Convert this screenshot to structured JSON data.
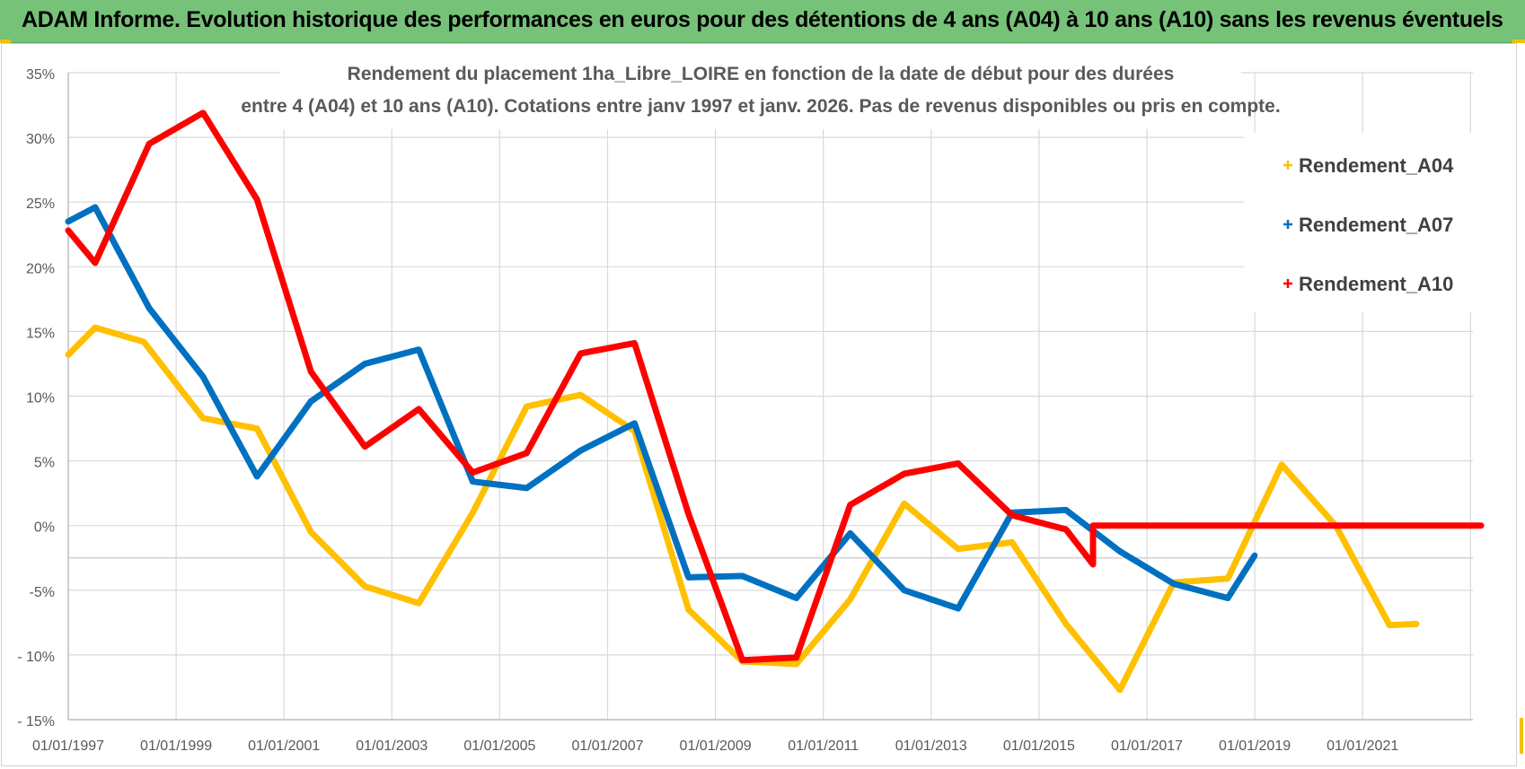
{
  "header": {
    "title": "ADAM Informe. Evolution historique des performances en euros pour des détentions de 4 ans (A04) à 10 ans (A10) sans les revenus éventuels"
  },
  "colors": {
    "banner": "#76c278",
    "a04": "#ffc000",
    "a07": "#0070c0",
    "a10": "#ff0000",
    "grid": "#d9d9d9"
  },
  "chart_data": {
    "type": "line",
    "title_line1": "Rendement du placement 1ha_Libre_LOIRE en fonction de la date de début pour des durées",
    "title_line2": "entre 4 (A04) et 10 ans (A10).  Cotations entre janv 1997 et janv. 2026. Pas de revenus disponibles ou pris en compte.",
    "xlabel": "",
    "ylabel": "",
    "x_ticks": [
      "01/01/1997",
      "01/01/1999",
      "01/01/2001",
      "01/01/2003",
      "01/01/2005",
      "01/01/2007",
      "01/01/2009",
      "01/01/2011",
      "01/01/2013",
      "01/01/2015",
      "01/01/2017",
      "01/01/2019",
      "01/01/2021"
    ],
    "y_ticks": [
      "35%",
      "30%",
      "25%",
      "20%",
      "15%",
      "10%",
      "5%",
      "0%",
      "-5%",
      "- 10%",
      "- 15%"
    ],
    "xlim": [
      1997.0,
      2023.2
    ],
    "ylim": [
      -15,
      35
    ],
    "grid": true,
    "legend_position": "top-right",
    "series": [
      {
        "name": "Rendement_A04",
        "color": "#ffc000",
        "points": [
          [
            1997.0,
            13.2
          ],
          [
            1997.5,
            15.3
          ],
          [
            1998.4,
            14.2
          ],
          [
            1999.5,
            8.3
          ],
          [
            2000.5,
            7.5
          ],
          [
            2001.5,
            -0.5
          ],
          [
            2002.5,
            -4.7
          ],
          [
            2003.5,
            -6.0
          ],
          [
            2004.5,
            1.0
          ],
          [
            2005.5,
            9.2
          ],
          [
            2006.5,
            10.1
          ],
          [
            2007.5,
            7.3
          ],
          [
            2008.5,
            -6.5
          ],
          [
            2009.5,
            -10.5
          ],
          [
            2010.5,
            -10.7
          ],
          [
            2011.5,
            -5.7
          ],
          [
            2012.5,
            1.7
          ],
          [
            2013.5,
            -1.8
          ],
          [
            2014.5,
            -1.3
          ],
          [
            2015.5,
            -7.6
          ],
          [
            2016.5,
            -12.7
          ],
          [
            2017.5,
            -4.4
          ],
          [
            2018.5,
            -4.1
          ],
          [
            2019.5,
            4.7
          ],
          [
            2020.5,
            0.0
          ],
          [
            2021.5,
            -7.7
          ],
          [
            2022.0,
            -7.6
          ]
        ]
      },
      {
        "name": "Rendement_A07",
        "color": "#0070c0",
        "points": [
          [
            1997.0,
            23.5
          ],
          [
            1997.5,
            24.6
          ],
          [
            1998.5,
            16.8
          ],
          [
            1999.5,
            11.5
          ],
          [
            2000.5,
            3.8
          ],
          [
            2001.5,
            9.6
          ],
          [
            2002.5,
            12.5
          ],
          [
            2003.5,
            13.6
          ],
          [
            2004.5,
            3.4
          ],
          [
            2005.5,
            2.9
          ],
          [
            2006.5,
            5.8
          ],
          [
            2007.5,
            7.9
          ],
          [
            2008.5,
            -4.0
          ],
          [
            2009.5,
            -3.9
          ],
          [
            2010.5,
            -5.6
          ],
          [
            2011.5,
            -0.6
          ],
          [
            2012.5,
            -5.0
          ],
          [
            2013.5,
            -6.4
          ],
          [
            2014.5,
            1.0
          ],
          [
            2015.5,
            1.2
          ],
          [
            2016.5,
            -2.0
          ],
          [
            2017.5,
            -4.5
          ],
          [
            2018.5,
            -5.6
          ],
          [
            2019.0,
            -2.3
          ]
        ]
      },
      {
        "name": "Rendement_A10",
        "color": "#ff0000",
        "points": [
          [
            1997.0,
            22.8
          ],
          [
            1997.5,
            20.3
          ],
          [
            1998.5,
            29.5
          ],
          [
            1999.5,
            31.9
          ],
          [
            2000.5,
            25.2
          ],
          [
            2001.5,
            11.9
          ],
          [
            2002.5,
            6.1
          ],
          [
            2003.5,
            9.0
          ],
          [
            2004.5,
            4.1
          ],
          [
            2005.5,
            5.6
          ],
          [
            2006.5,
            13.3
          ],
          [
            2007.5,
            14.1
          ],
          [
            2008.5,
            0.9
          ],
          [
            2009.5,
            -10.4
          ],
          [
            2010.5,
            -10.2
          ],
          [
            2011.5,
            1.6
          ],
          [
            2012.5,
            4.0
          ],
          [
            2013.5,
            4.8
          ],
          [
            2014.5,
            0.8
          ],
          [
            2015.5,
            -0.3
          ],
          [
            2016.0,
            -3.0
          ],
          [
            2016.0,
            0.0
          ],
          [
            2023.2,
            0.0
          ]
        ]
      }
    ]
  }
}
